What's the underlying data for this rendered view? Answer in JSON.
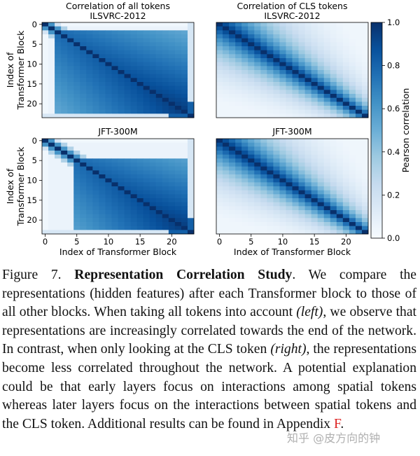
{
  "chart_data": [
    {
      "type": "heatmap",
      "dataset": "ILSVRC-2012",
      "title": "Correlation of all tokens",
      "subtitle": "ILSVRC-2012",
      "ylabel": "Index of Transformer Block",
      "xlabel": "",
      "size": 24,
      "xticks": [],
      "yticks": [
        "0",
        "5",
        "10",
        "15",
        "20"
      ],
      "pattern": "all-tokens",
      "boundary_block": 2,
      "cls_column": 23
    },
    {
      "type": "heatmap",
      "dataset": "ILSVRC-2012",
      "title": "Correlation of CLS tokens",
      "subtitle": "ILSVRC-2012",
      "ylabel": "",
      "xlabel": "",
      "size": 24,
      "xticks": [],
      "yticks": [],
      "pattern": "cls-tokens"
    },
    {
      "type": "heatmap",
      "dataset": "JFT-300M",
      "title": "JFT-300M",
      "subtitle": "",
      "ylabel": "Index of Transformer Block",
      "xlabel": "Index of Transformer Block",
      "size": 24,
      "xticks": [
        "0",
        "5",
        "10",
        "15",
        "20"
      ],
      "yticks": [
        "0",
        "5",
        "10",
        "15",
        "20"
      ],
      "pattern": "all-tokens",
      "boundary_block": 5,
      "cls_column": 23
    },
    {
      "type": "heatmap",
      "dataset": "JFT-300M",
      "title": "JFT-300M",
      "subtitle": "",
      "ylabel": "",
      "xlabel": "Index of Transformer Block",
      "size": 24,
      "xticks": [
        "0",
        "5",
        "10",
        "15",
        "20"
      ],
      "yticks": [],
      "pattern": "cls-tokens"
    }
  ],
  "colorbar": {
    "label": "Pearson correlation",
    "min": 0.0,
    "max": 1.0,
    "ticks": [
      "0.0",
      "0.2",
      "0.4",
      "0.6",
      "0.8",
      "1.0"
    ]
  },
  "colors": {
    "low": "#f7fbff",
    "high": "#08306b"
  },
  "caption": {
    "figure_label": "Figure 7.",
    "bold_title": "Representation Correlation Study",
    "part1": ".  We compare the representations (hidden features) after each Transformer block to those of all other blocks.  When taking all tokens into account ",
    "italic_left": "(left)",
    "part2": ", we observe that representations are increasingly correlated towards the end of the network. In contrast, when only looking at the CLS token ",
    "italic_right": "(right)",
    "part3": ", the representations become less correlated throughout the network.  A potential explanation could be that early layers focus on interactions among spatial tokens whereas later layers focus on the interactions between spatial tokens and the CLS token. Additional results can be found in Appendix ",
    "appendix_ref": "F",
    "end": "."
  },
  "watermark": "知乎 @皮方向的钟"
}
